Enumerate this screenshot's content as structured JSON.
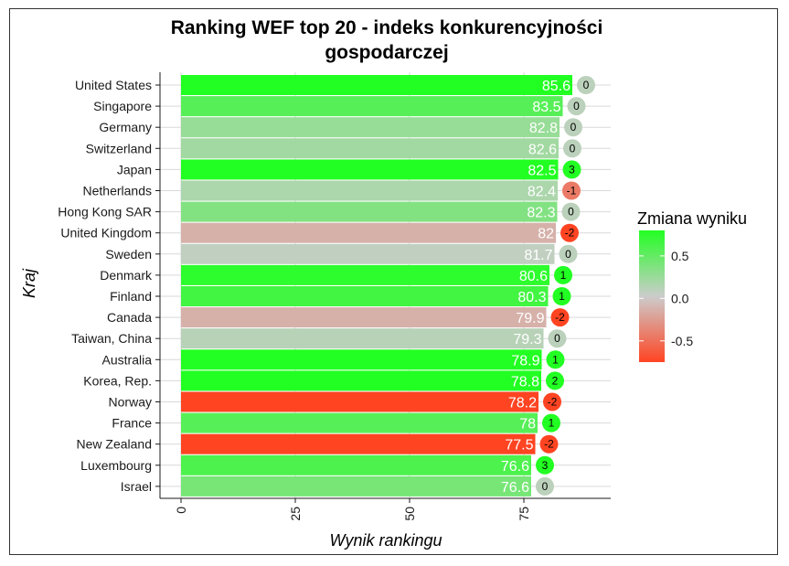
{
  "chart_data": {
    "type": "bar",
    "orientation": "horizontal",
    "title_line1": "Ranking WEF top 20 - indeks konkurencyjności",
    "title_line2": "gospodarczej",
    "xlabel": "Wynik rankingu",
    "ylabel": "Kraj",
    "xlim": [
      0,
      95
    ],
    "xticks": [
      0,
      25,
      50,
      75
    ],
    "xtick_labels": [
      "0",
      "25",
      "50",
      "75"
    ],
    "grid": true,
    "categories": [
      "United States",
      "Singapore",
      "Germany",
      "Switzerland",
      "Japan",
      "Netherlands",
      "Hong Kong SAR",
      "United Kingdom",
      "Sweden",
      "Denmark",
      "Finland",
      "Canada",
      "Taiwan, China",
      "Australia",
      "Korea, Rep.",
      "Norway",
      "France",
      "New Zealand",
      "Luxembourg",
      "Israel"
    ],
    "values": [
      85.6,
      83.5,
      82.8,
      82.6,
      82.5,
      82.4,
      82.3,
      82,
      81.7,
      80.6,
      80.3,
      79.9,
      79.3,
      78.9,
      78.8,
      78.2,
      78,
      77.5,
      76.6,
      76.6
    ],
    "value_labels": [
      "85.6",
      "83.5",
      "82.8",
      "82.6",
      "82.5",
      "82.4",
      "82.3",
      "82",
      "81.7",
      "80.6",
      "80.3",
      "79.9",
      "79.3",
      "78.9",
      "78.8",
      "78.2",
      "78",
      "77.5",
      "76.6",
      "76.6"
    ],
    "rank_change": [
      0,
      0,
      0,
      0,
      3,
      -1,
      0,
      -2,
      0,
      1,
      1,
      -2,
      0,
      1,
      2,
      -2,
      1,
      -2,
      3,
      0
    ],
    "rank_change_labels": [
      "0",
      "0",
      "0",
      "0",
      "3",
      "-1",
      "0",
      "-2",
      "0",
      "1",
      "1",
      "-2",
      "0",
      "1",
      "2",
      "-2",
      "1",
      "-2",
      "3",
      "0"
    ],
    "score_change": [
      0.85,
      0.55,
      0.25,
      0.2,
      0.95,
      0.15,
      0.35,
      -0.15,
      0.05,
      0.75,
      0.65,
      -0.15,
      0.1,
      0.8,
      0.85,
      -0.9,
      0.55,
      -0.75,
      0.6,
      0.4
    ],
    "legend": {
      "title": "Zmiana wyniku",
      "placement": "right",
      "ticks": [
        0.5,
        0.0,
        -0.5
      ],
      "tick_labels": [
        "0.5",
        "0.0",
        "-0.5"
      ],
      "range": [
        -0.75,
        0.8
      ],
      "color_high": "#22ff22",
      "color_mid": "#cccccc",
      "color_low": "#ff4422"
    }
  }
}
